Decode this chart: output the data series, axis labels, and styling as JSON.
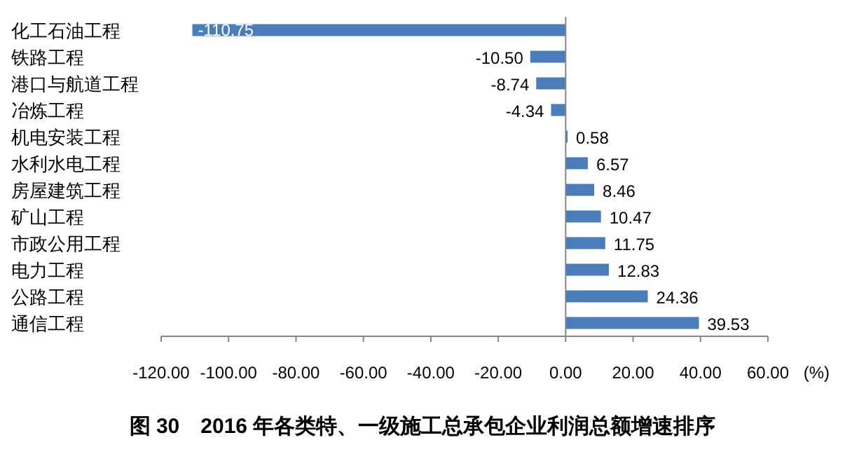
{
  "chart_data": {
    "type": "bar",
    "title": "图 30　2016 年各类特、一级施工总承包企业利润总额增速排序",
    "xlabel": "(%)",
    "categories": [
      "化工石油工程",
      "铁路工程",
      "港口与航道工程",
      "冶炼工程",
      "机电安装工程",
      "水利水电工程",
      "房屋建筑工程",
      "矿山工程",
      "市政公用工程",
      "电力工程",
      "公路工程",
      "通信工程"
    ],
    "values": [
      -110.75,
      -10.5,
      -8.74,
      -4.34,
      0.58,
      6.57,
      8.46,
      10.47,
      11.75,
      12.83,
      24.36,
      39.53
    ],
    "value_labels": [
      "-110.75",
      "-10.50",
      "-8.74",
      "-4.34",
      "0.58",
      "6.57",
      "8.46",
      "10.47",
      "11.75",
      "12.83",
      "24.36",
      "39.53"
    ],
    "color": "#4a7ebb",
    "xlim": [
      -120,
      60
    ],
    "xticks": [
      {
        "value": -120,
        "label": "-120.00"
      },
      {
        "value": -100,
        "label": "-100.00"
      },
      {
        "value": -80,
        "label": "-80.00"
      },
      {
        "value": -60,
        "label": "-60.00"
      },
      {
        "value": -40,
        "label": "-40.00"
      },
      {
        "value": -20,
        "label": "-20.00"
      },
      {
        "value": 0,
        "label": "0.00"
      },
      {
        "value": 20,
        "label": "20.00"
      },
      {
        "value": 40,
        "label": "40.00"
      },
      {
        "value": 60,
        "label": "60.00"
      }
    ],
    "orientation": "horizontal"
  }
}
